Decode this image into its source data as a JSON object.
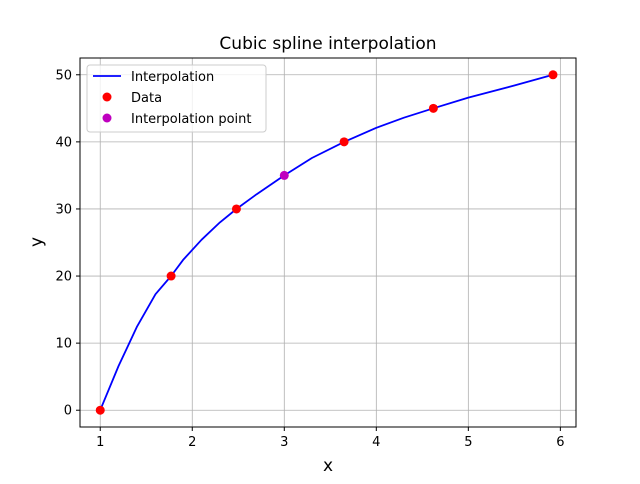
{
  "chart_data": {
    "type": "line",
    "title": "Cubic spline interpolation",
    "xlabel": "x",
    "ylabel": "y",
    "xlim": [
      0.78,
      6.17
    ],
    "ylim": [
      -2.5,
      52.5
    ],
    "xticks": [
      1,
      2,
      3,
      4,
      5,
      6
    ],
    "yticks": [
      0,
      10,
      20,
      30,
      40,
      50
    ],
    "grid": true,
    "legend_position": "top-left",
    "series": [
      {
        "name": "Interpolation",
        "kind": "line",
        "color": "#0000ff",
        "x": [
          1.0,
          1.2,
          1.4,
          1.6,
          1.77,
          1.9,
          2.1,
          2.3,
          2.48,
          2.7,
          3.0,
          3.3,
          3.65,
          4.0,
          4.3,
          4.62,
          5.0,
          5.5,
          5.92
        ],
        "y": [
          0,
          6.6,
          12.5,
          17.3,
          20,
          22.4,
          25.4,
          28.0,
          30,
          32.2,
          35,
          37.6,
          40,
          42.1,
          43.6,
          45,
          46.6,
          48.4,
          50
        ]
      },
      {
        "name": "Data",
        "kind": "marker",
        "color": "#ff0000",
        "x": [
          1.0,
          1.77,
          2.48,
          3.65,
          4.62,
          5.92
        ],
        "y": [
          0,
          20,
          30,
          40,
          45,
          50
        ]
      },
      {
        "name": "Interpolation point",
        "kind": "marker",
        "color": "#bf00bf",
        "x": [
          3.0
        ],
        "y": [
          35
        ]
      }
    ]
  }
}
